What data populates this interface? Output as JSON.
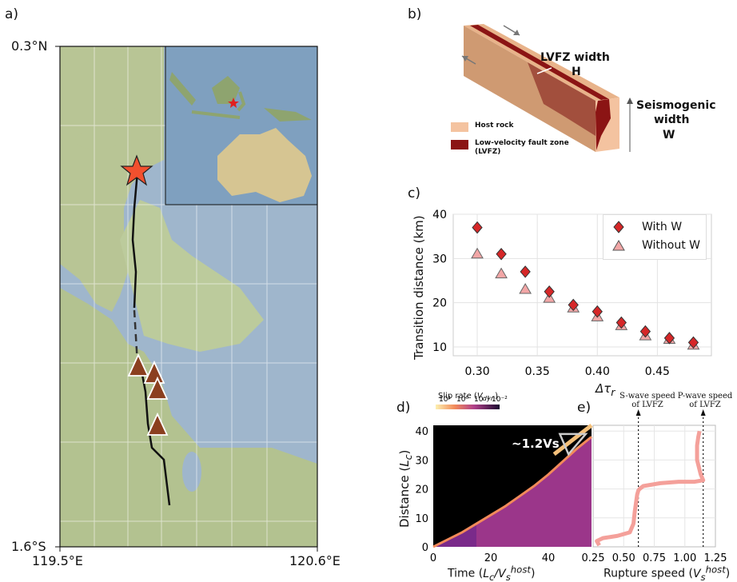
{
  "labels": {
    "a": "a)",
    "b": "b)",
    "c": "c)",
    "d": "d)",
    "e": "e)"
  },
  "map": {
    "lat_top": "0.3°N",
    "lat_bottom": "1.6°S",
    "lon_left": "119.5°E",
    "lon_right": "120.6°E",
    "colors": {
      "sea": "#9fb6cc",
      "land": "#b9c79a",
      "fault": "#111111",
      "epicenter": "#f2502e",
      "triangle": "#8b3f1f"
    }
  },
  "schematic": {
    "lvfz_width": "LVFZ width",
    "lvfz_symbol": "H",
    "seismo_1": "Seismogenic",
    "seismo_2": "width",
    "seismo_symbol": "W",
    "legend_host": "Host rock",
    "legend_lvfz_1": "Low-velocity fault zone",
    "legend_lvfz_2": "(LVFZ)",
    "colors": {
      "host": "#f4c3a0",
      "lvfz": "#8b1414"
    }
  },
  "chart_data": [
    {
      "type": "scatter",
      "panel": "c",
      "ylabel": "Transition distance (km)",
      "xlabel": "Δτ_r",
      "xlim": [
        0.28,
        0.495
      ],
      "ylim": [
        8,
        40
      ],
      "xticks": [
        "0.30",
        "0.35",
        "0.40",
        "0.45"
      ],
      "yticks": [
        "10",
        "20",
        "30",
        "40"
      ],
      "grid": true,
      "legend_position": "top-right",
      "series": [
        {
          "name": "With W",
          "marker": "diamond",
          "color": "#d62728",
          "x": [
            0.3,
            0.32,
            0.34,
            0.36,
            0.38,
            0.4,
            0.42,
            0.44,
            0.46,
            0.48
          ],
          "y": [
            37,
            31,
            27,
            22.5,
            19.5,
            18,
            15.5,
            13.5,
            12,
            11
          ]
        },
        {
          "name": "Without W",
          "marker": "triangle",
          "color": "#f2a6a6",
          "x": [
            0.3,
            0.32,
            0.34,
            0.36,
            0.38,
            0.4,
            0.42,
            0.44,
            0.46,
            0.48
          ],
          "y": [
            31,
            26.5,
            23,
            21,
            18.8,
            16.8,
            14.8,
            12.5,
            11.7,
            10.4
          ]
        }
      ]
    },
    {
      "type": "heatmap",
      "panel": "d",
      "ylabel": "Distance (L_c)",
      "xlabel": "Time (L_c/V_s^host)",
      "xlim": [
        0,
        55
      ],
      "ylim": [
        0,
        42
      ],
      "xticks": [
        "0",
        "20",
        "40"
      ],
      "yticks": [
        "0",
        "10",
        "20",
        "30",
        "40"
      ],
      "colorbar_title": "Slip rate (V_dyn)",
      "colorbar_ticks": [
        "10¹",
        "10⁰",
        "10⁻¹",
        "10⁻²"
      ],
      "annotation": "~1.2Vs",
      "rupture_front": {
        "t": [
          0,
          5,
          10,
          15,
          20,
          25,
          30,
          35,
          40,
          45,
          50,
          55
        ],
        "x": [
          0,
          2.5,
          5,
          8,
          11,
          14,
          17.5,
          21,
          25,
          29.5,
          34,
          38
        ]
      }
    },
    {
      "type": "line",
      "panel": "e",
      "xlabel": "Rupture speed (V_s^host)",
      "xlim": [
        0.25,
        1.25
      ],
      "ylim": [
        0,
        42
      ],
      "xticks": [
        "0.25",
        "0.50",
        "0.75",
        "1.00",
        "1.25"
      ],
      "vlines": [
        {
          "x": 0.62,
          "label_1": "S-wave speed",
          "label_2": "of LVFZ"
        },
        {
          "x": 1.15,
          "label_1": "P-wave speed",
          "label_2": "of LVFZ"
        }
      ],
      "series": [
        {
          "color": "#f4a09a",
          "x": [
            0.3,
            0.28,
            0.33,
            0.45,
            0.55,
            0.58,
            0.59,
            0.6,
            0.61,
            0.62,
            0.63,
            0.66,
            0.8,
            0.95,
            1.08,
            1.15,
            1.13,
            1.1,
            1.1,
            1.11,
            1.12
          ],
          "y": [
            0.5,
            2,
            3,
            3.8,
            5,
            8,
            12,
            15,
            18,
            19.5,
            20,
            21,
            22,
            22.5,
            22.5,
            23,
            25,
            30,
            35,
            38,
            40
          ]
        }
      ]
    }
  ]
}
